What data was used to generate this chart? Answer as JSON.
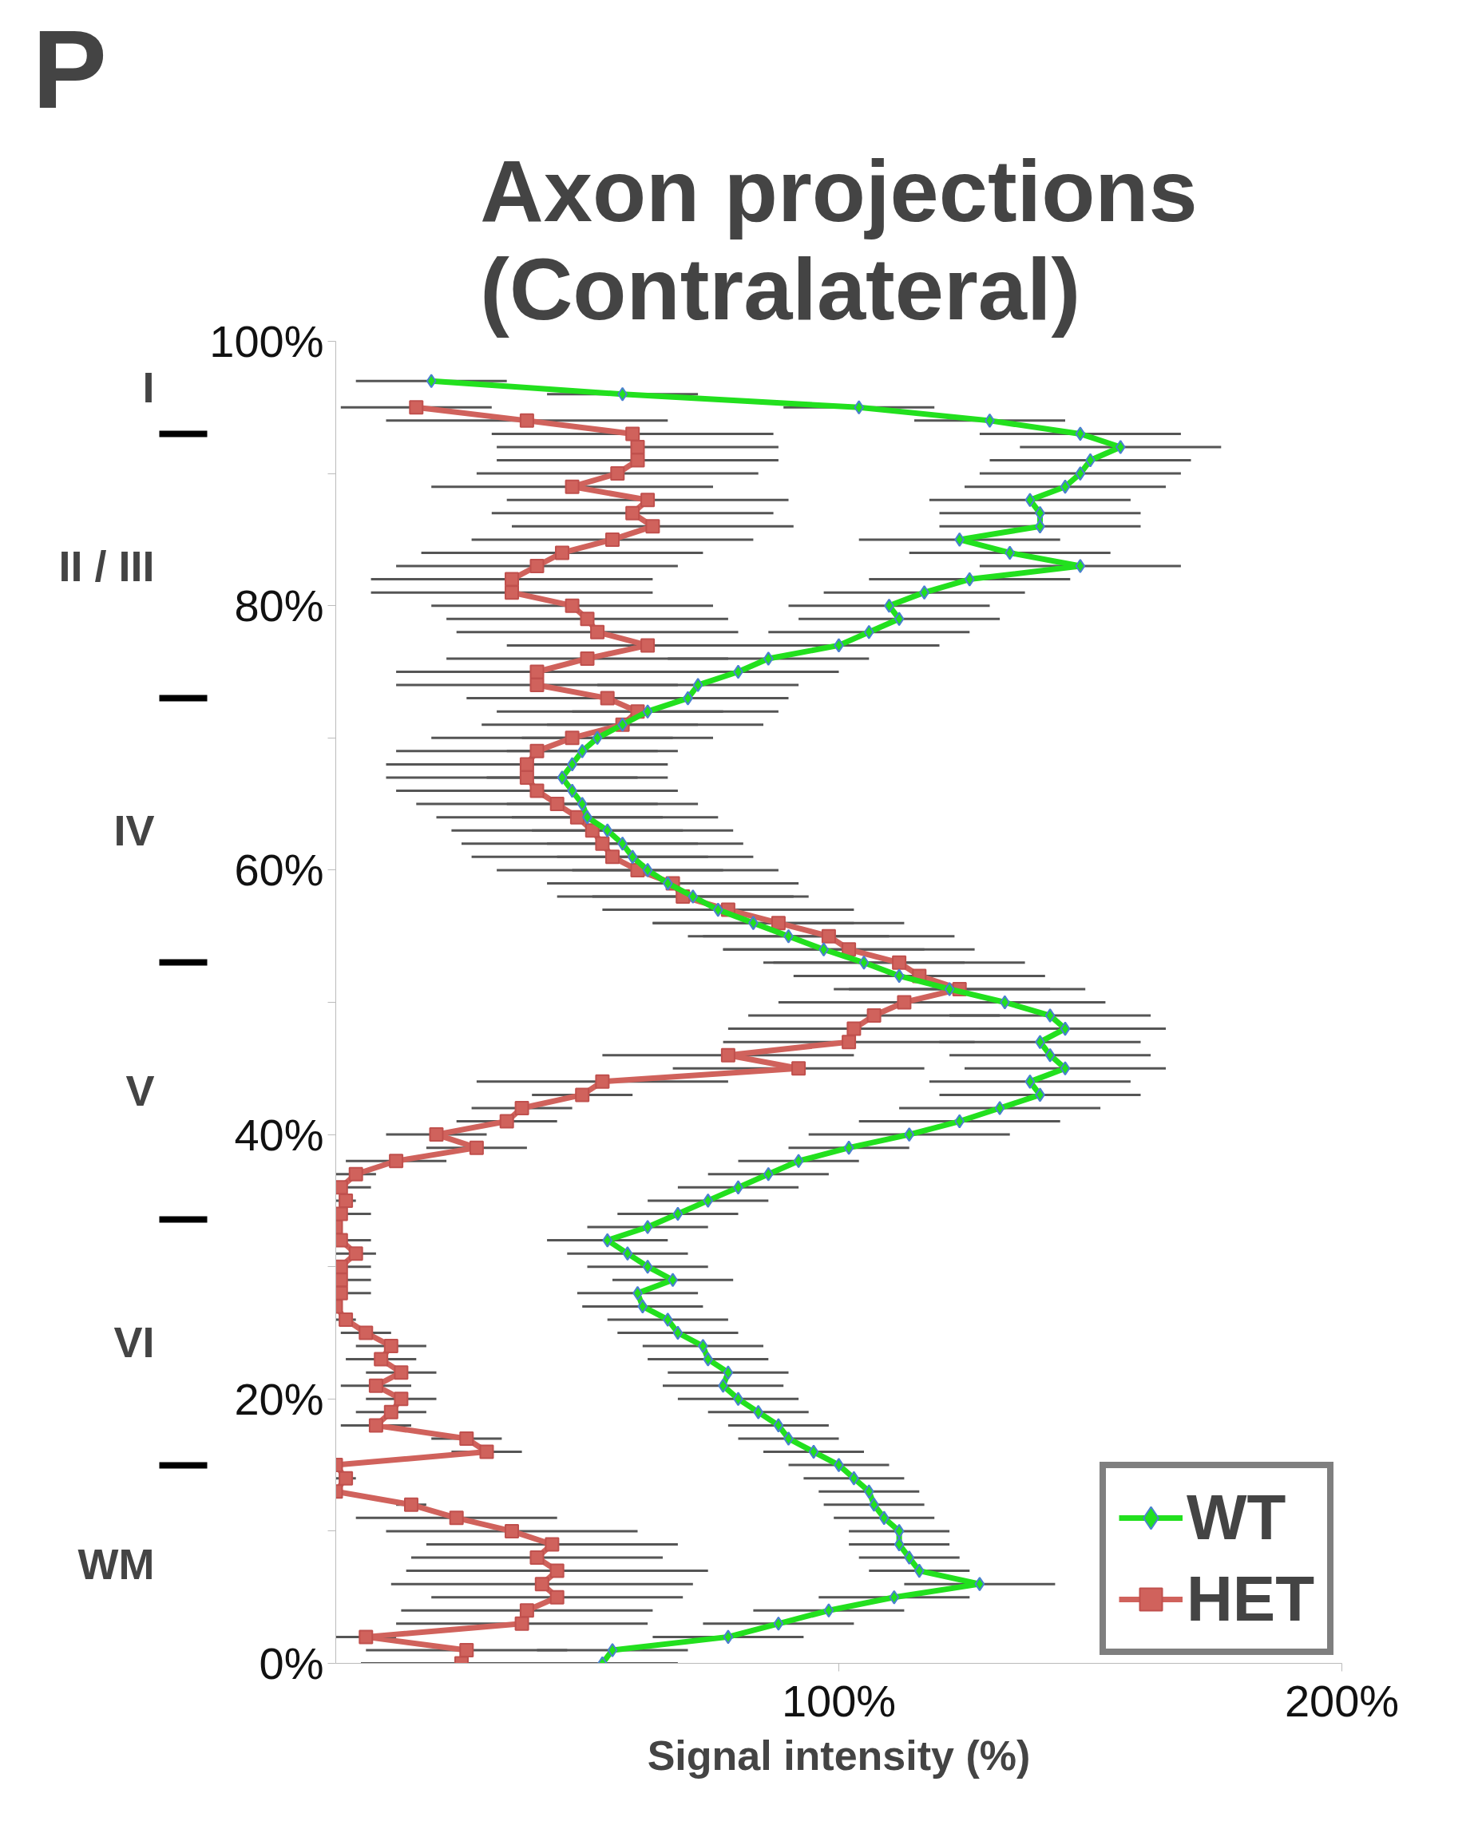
{
  "chart_data": {
    "type": "line",
    "title": "Axon projections\n(Contralateral)",
    "xlabel": "Signal intensity (%)",
    "annotations": [
      "P",
      "I",
      "II / III",
      "IV",
      "V",
      "VI",
      "WM"
    ],
    "xlim": [
      0,
      200
    ],
    "ylim": [
      0,
      100
    ],
    "xticks": [
      {
        "value": 100,
        "label": "100%"
      },
      {
        "value": 200,
        "label": "200%"
      }
    ],
    "yticks": [
      {
        "value": 0,
        "label": "0%"
      },
      {
        "value": 10,
        "label": null
      },
      {
        "value": 20,
        "label": "20%"
      },
      {
        "value": 30,
        "label": null
      },
      {
        "value": 40,
        "label": "40%"
      },
      {
        "value": 50,
        "label": null
      },
      {
        "value": 60,
        "label": "60%"
      },
      {
        "value": 70,
        "label": null
      },
      {
        "value": 80,
        "label": "80%"
      },
      {
        "value": 90,
        "label": null
      },
      {
        "value": 100,
        "label": "100%"
      }
    ],
    "grid": false,
    "legend": "bottom right",
    "series": [
      {
        "name": "WT",
        "color": "#22e01e",
        "marker": "diamond",
        "x": [
          19,
          57,
          104,
          130,
          148,
          156,
          150,
          148,
          145,
          138,
          140,
          140,
          124,
          134,
          148,
          126,
          117,
          110,
          112,
          106,
          100,
          86,
          80,
          72,
          70,
          62,
          57,
          52,
          49,
          47,
          45,
          47,
          49,
          50,
          54,
          57,
          59,
          62,
          66,
          71,
          76,
          83,
          90,
          97,
          105,
          112,
          122,
          133,
          142,
          145,
          140,
          142,
          145,
          138,
          140,
          132,
          124,
          114,
          102,
          92,
          86,
          80,
          74,
          68,
          62,
          54,
          58,
          62,
          67,
          60,
          61,
          66,
          68,
          73,
          74,
          78,
          77,
          80,
          84,
          88,
          90,
          95,
          100,
          103,
          106,
          107,
          109,
          112,
          112,
          114,
          116,
          128,
          111,
          98,
          88,
          78,
          55,
          53
        ],
        "values": [
          97,
          96,
          95,
          94,
          93,
          92,
          91,
          90,
          89,
          88,
          87,
          86,
          85,
          84,
          83,
          82,
          81,
          80,
          79,
          78,
          77,
          76,
          75,
          74,
          73,
          72,
          71,
          70,
          69,
          68,
          67,
          66,
          65,
          64,
          63,
          62,
          61,
          60,
          59,
          58,
          57,
          56,
          55,
          54,
          53,
          52,
          51,
          50,
          49,
          48,
          47,
          46,
          45,
          44,
          43,
          42,
          41,
          40,
          39,
          38,
          37,
          36,
          35,
          34,
          33,
          32,
          31,
          30,
          29,
          28,
          27,
          26,
          25,
          24,
          23,
          22,
          21,
          20,
          19,
          18,
          17,
          16,
          15,
          14,
          13,
          12,
          11,
          10,
          9,
          8,
          7,
          6,
          5,
          4,
          3,
          2,
          1,
          0
        ],
        "xerrors": [
          15,
          15,
          15,
          15,
          20,
          20,
          20,
          20,
          20,
          20,
          20,
          20,
          20,
          20,
          20,
          20,
          20,
          20,
          20,
          20,
          20,
          20,
          20,
          20,
          20,
          15,
          15,
          15,
          15,
          15,
          15,
          15,
          15,
          15,
          15,
          15,
          15,
          15,
          20,
          20,
          20,
          20,
          20,
          20,
          20,
          20,
          20,
          20,
          20,
          20,
          20,
          20,
          20,
          20,
          20,
          20,
          20,
          20,
          12,
          12,
          12,
          12,
          12,
          12,
          12,
          12,
          12,
          12,
          12,
          12,
          12,
          12,
          12,
          12,
          12,
          12,
          12,
          12,
          10,
          10,
          10,
          10,
          10,
          10,
          10,
          10,
          10,
          10,
          10,
          10,
          10,
          15,
          15,
          15,
          15,
          15,
          15,
          15
        ]
      },
      {
        "name": "HET",
        "color": "#d0625c",
        "marker": "square",
        "x": [
          16,
          38,
          59,
          60,
          60,
          56,
          47,
          62,
          59,
          63,
          55,
          45,
          40,
          35,
          35,
          47,
          50,
          52,
          62,
          50,
          40,
          40,
          54,
          60,
          57,
          47,
          40,
          38,
          38,
          40,
          44,
          48,
          51,
          53,
          55,
          60,
          67,
          69,
          78,
          88,
          98,
          102,
          112,
          116,
          124,
          113,
          107,
          103,
          102,
          78,
          92,
          53,
          49,
          37,
          34,
          20,
          28,
          12,
          4,
          1,
          2,
          1,
          0,
          1,
          4,
          1,
          1,
          1,
          0,
          2,
          6,
          11,
          9,
          13,
          8,
          13,
          11,
          8,
          26,
          30,
          0,
          2,
          0,
          15,
          24,
          35,
          43,
          40,
          44,
          41,
          44,
          38,
          37,
          6,
          26,
          25
        ],
        "values": [
          95,
          94,
          93,
          92,
          91,
          90,
          89,
          88,
          87,
          86,
          85,
          84,
          83,
          82,
          81,
          80,
          79,
          78,
          77,
          76,
          75,
          74,
          73,
          72,
          71,
          70,
          69,
          68,
          67,
          66,
          65,
          64,
          63,
          62,
          61,
          60,
          59,
          58,
          57,
          56,
          55,
          54,
          53,
          52,
          51,
          50,
          49,
          48,
          47,
          46,
          45,
          44,
          43,
          42,
          41,
          40,
          39,
          38,
          37,
          36,
          35,
          34,
          33,
          32,
          31,
          30,
          29,
          28,
          27,
          26,
          25,
          24,
          23,
          22,
          21,
          20,
          19,
          18,
          17,
          16,
          15,
          14,
          13,
          12,
          11,
          10,
          9,
          8,
          7,
          6,
          5,
          4,
          3,
          2,
          1,
          0
        ],
        "xerrors": [
          15,
          28,
          28,
          28,
          28,
          28,
          28,
          28,
          28,
          28,
          28,
          28,
          28,
          28,
          28,
          28,
          28,
          28,
          28,
          28,
          28,
          28,
          28,
          28,
          28,
          28,
          28,
          28,
          28,
          28,
          28,
          28,
          28,
          28,
          28,
          28,
          25,
          25,
          25,
          25,
          25,
          25,
          25,
          25,
          25,
          25,
          25,
          25,
          25,
          25,
          25,
          25,
          10,
          10,
          10,
          10,
          10,
          10,
          4,
          [
            0,
            7
          ],
          2,
          [
            0,
            7
          ],
          null,
          [
            0,
            7
          ],
          4,
          [
            0,
            7
          ],
          [
            0,
            7
          ],
          [
            0,
            7
          ],
          null,
          2,
          5,
          7,
          7,
          7,
          7,
          7,
          7,
          7,
          7,
          7,
          null,
          2,
          null,
          3,
          20,
          25,
          25,
          25,
          30,
          30,
          25,
          25,
          25,
          6,
          20,
          20
        ]
      }
    ]
  }
}
